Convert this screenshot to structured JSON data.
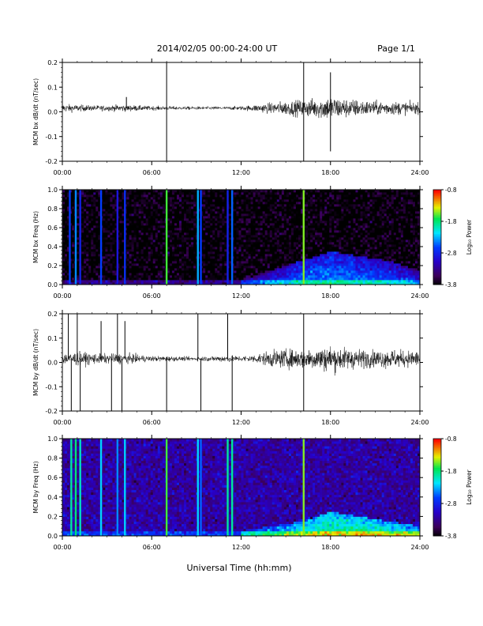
{
  "header": {
    "date_text": "2014/02/05   00:00-24:00 UT",
    "page_text": "Page 1/1"
  },
  "footer": {
    "xaxis_label": "Universal Time (hh:mm)"
  },
  "x_ticks": [
    "00:00",
    "06:00",
    "12:00",
    "18:00",
    "24:00"
  ],
  "colorbar": {
    "label": "Log₁₀ Power",
    "ticks": [
      "-0.8",
      "-1.8",
      "-2.8",
      "-3.8"
    ]
  },
  "chart_data": [
    {
      "type": "line",
      "ylabel": "MCM bx dB/dt (nT/sec)",
      "x_range_hours": [
        0,
        24
      ],
      "ylim": [
        -0.2,
        0.2
      ],
      "yticks": [
        "0.2",
        "0.1",
        "0.0",
        "-0.1",
        "-0.2"
      ],
      "envelope": {
        "time_hours": [
          0,
          1,
          2,
          3,
          4,
          5,
          6,
          7,
          8,
          9,
          10,
          11,
          12,
          13,
          14,
          15,
          16,
          17,
          18,
          19,
          20,
          21,
          22,
          23,
          24
        ],
        "amplitude": [
          0.03,
          0.025,
          0.02,
          0.02,
          0.025,
          0.02,
          0.015,
          0.015,
          0.012,
          0.012,
          0.012,
          0.012,
          0.015,
          0.025,
          0.04,
          0.05,
          0.06,
          0.07,
          0.09,
          0.07,
          0.06,
          0.05,
          0.05,
          0.045,
          0.04
        ]
      },
      "spikes": [
        {
          "time_hours": 4.3,
          "value": 0.06
        },
        {
          "time_hours": 7.0,
          "value": 0.2
        },
        {
          "time_hours": 7.0,
          "value": -0.2
        },
        {
          "time_hours": 16.2,
          "value": 0.2
        },
        {
          "time_hours": 16.2,
          "value": -0.2
        },
        {
          "time_hours": 18.0,
          "value": 0.16
        },
        {
          "time_hours": 18.0,
          "value": -0.16
        }
      ]
    },
    {
      "type": "heatmap",
      "ylabel": "MCM bx Freq (Hz)",
      "x_range_hours": [
        0,
        24
      ],
      "ylim": [
        0,
        1.0
      ],
      "yticks": [
        "1.0",
        "0.8",
        "0.6",
        "0.4",
        "0.2",
        "0.0"
      ],
      "color_range_log10_power": [
        -3.8,
        -0.8
      ],
      "background_level": -3.8,
      "stripes": [
        {
          "time_hours": 0.5,
          "level": -2.6
        },
        {
          "time_hours": 0.9,
          "level": -2.4
        },
        {
          "time_hours": 1.2,
          "level": -2.8
        },
        {
          "time_hours": 2.6,
          "level": -2.6
        },
        {
          "time_hours": 3.7,
          "level": -2.9
        },
        {
          "time_hours": 4.2,
          "level": -2.7
        },
        {
          "time_hours": 7.0,
          "level": -1.6
        },
        {
          "time_hours": 9.1,
          "level": -2.3
        },
        {
          "time_hours": 9.3,
          "level": -2.6
        },
        {
          "time_hours": 11.1,
          "level": -2.8
        },
        {
          "time_hours": 11.4,
          "level": -2.5
        },
        {
          "time_hours": 16.2,
          "level": -1.5
        }
      ],
      "low_frequency_activity": {
        "time_hours": [
          12,
          14,
          16,
          18,
          20,
          22,
          24
        ],
        "peak_freq_hz": [
          0.05,
          0.15,
          0.25,
          0.35,
          0.3,
          0.25,
          0.15
        ],
        "level": [
          -3.6,
          -3.3,
          -3.0,
          -2.9,
          -3.0,
          -3.1,
          -3.3
        ]
      }
    },
    {
      "type": "line",
      "ylabel": "MCM by dB/dt (nT/sec)",
      "x_range_hours": [
        0,
        24
      ],
      "ylim": [
        -0.2,
        0.2
      ],
      "yticks": [
        "0.2",
        "0.1",
        "0.0",
        "-0.1",
        "-0.2"
      ],
      "envelope": {
        "time_hours": [
          0,
          1,
          2,
          3,
          4,
          5,
          6,
          7,
          8,
          9,
          10,
          11,
          12,
          13,
          14,
          15,
          16,
          17,
          18,
          19,
          20,
          21,
          22,
          23,
          24
        ],
        "amplitude": [
          0.04,
          0.05,
          0.04,
          0.035,
          0.04,
          0.03,
          0.02,
          0.02,
          0.015,
          0.015,
          0.02,
          0.025,
          0.02,
          0.03,
          0.06,
          0.07,
          0.07,
          0.08,
          0.1,
          0.08,
          0.07,
          0.06,
          0.07,
          0.06,
          0.06
        ]
      },
      "spikes": [
        {
          "time_hours": 0.4,
          "value": 0.2
        },
        {
          "time_hours": 0.6,
          "value": -0.2
        },
        {
          "time_hours": 1.0,
          "value": 0.2
        },
        {
          "time_hours": 1.2,
          "value": -0.2
        },
        {
          "time_hours": 2.6,
          "value": 0.17
        },
        {
          "time_hours": 3.3,
          "value": -0.2
        },
        {
          "time_hours": 3.7,
          "value": 0.2
        },
        {
          "time_hours": 4.0,
          "value": -0.2
        },
        {
          "time_hours": 4.2,
          "value": 0.17
        },
        {
          "time_hours": 7.0,
          "value": -0.2
        },
        {
          "time_hours": 9.1,
          "value": 0.2
        },
        {
          "time_hours": 9.3,
          "value": -0.2
        },
        {
          "time_hours": 11.1,
          "value": 0.2
        },
        {
          "time_hours": 11.4,
          "value": -0.2
        },
        {
          "time_hours": 16.2,
          "value": 0.2
        },
        {
          "time_hours": 16.2,
          "value": -0.2
        }
      ]
    },
    {
      "type": "heatmap",
      "ylabel": "MCM by Freq (Hz)",
      "x_range_hours": [
        0,
        24
      ],
      "ylim": [
        0,
        1.0
      ],
      "yticks": [
        "1.0",
        "0.8",
        "0.6",
        "0.4",
        "0.2",
        "0.0"
      ],
      "color_range_log10_power": [
        -3.8,
        -0.8
      ],
      "background_level": -3.2,
      "stripes": [
        {
          "time_hours": 0.6,
          "level": -1.9
        },
        {
          "time_hours": 0.9,
          "level": -1.8
        },
        {
          "time_hours": 1.2,
          "level": -2.0
        },
        {
          "time_hours": 2.6,
          "level": -2.2
        },
        {
          "time_hours": 3.7,
          "level": -2.4
        },
        {
          "time_hours": 4.2,
          "level": -2.2
        },
        {
          "time_hours": 7.0,
          "level": -1.6
        },
        {
          "time_hours": 9.1,
          "level": -2.2
        },
        {
          "time_hours": 9.3,
          "level": -2.5
        },
        {
          "time_hours": 11.1,
          "level": -1.9
        },
        {
          "time_hours": 11.4,
          "level": -1.9
        },
        {
          "time_hours": 16.2,
          "level": -1.5
        }
      ],
      "low_frequency_activity": {
        "time_hours": [
          12,
          14,
          16,
          18,
          20,
          22,
          24
        ],
        "peak_freq_hz": [
          0.05,
          0.1,
          0.15,
          0.25,
          0.2,
          0.15,
          0.1
        ],
        "level": [
          -2.9,
          -2.7,
          -2.5,
          -2.3,
          -2.3,
          -2.4,
          -2.5
        ]
      }
    }
  ]
}
